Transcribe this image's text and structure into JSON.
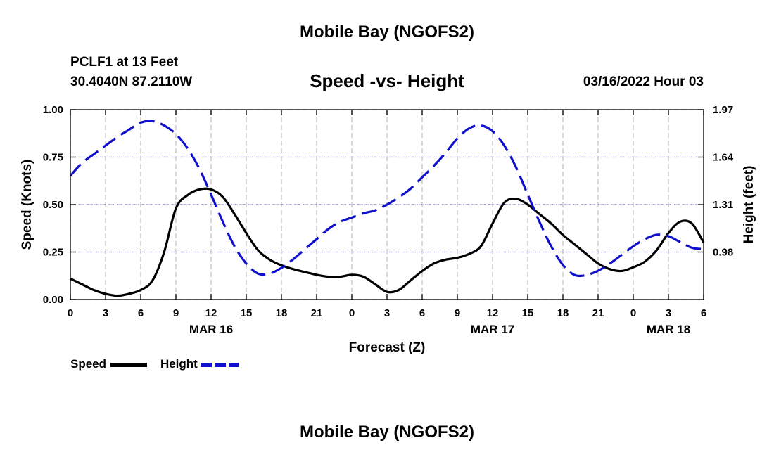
{
  "page": {
    "title_top": "Mobile Bay (NGOFS2)",
    "title_bottom": "Mobile Bay (NGOFS2)",
    "station": "PCLF1 at 13 Feet",
    "coords": "30.4040N  87.2110W",
    "subtitle": "Speed -vs- Height",
    "datetime": "03/16/2022 Hour 03"
  },
  "legend": {
    "speed_label": "Speed",
    "height_label": "Height"
  },
  "colors": {
    "speed": "#000000",
    "height": "#1010cc",
    "grid": "#bdbdbd"
  },
  "chart_data": {
    "type": "line",
    "title": "Speed -vs- Height",
    "xlabel": "Forecast (Z)",
    "ylabel": "Speed (Knots)",
    "y2label": "Height (feet)",
    "xlim": [
      0,
      54
    ],
    "ylim": [
      0,
      1
    ],
    "y2lim": [
      0.65,
      1.97
    ],
    "x_ticks": [
      0,
      3,
      6,
      9,
      12,
      15,
      18,
      21,
      24,
      27,
      30,
      33,
      36,
      39,
      42,
      45,
      48,
      51,
      54
    ],
    "x_tick_labels": [
      "0",
      "3",
      "6",
      "9",
      "12",
      "15",
      "18",
      "21",
      "0",
      "3",
      "6",
      "9",
      "12",
      "15",
      "18",
      "21",
      "0",
      "3",
      "6"
    ],
    "date_labels": [
      {
        "x": 12,
        "label": "MAR 16"
      },
      {
        "x": 36,
        "label": "MAR 17"
      },
      {
        "x": 51,
        "label": "MAR 18"
      }
    ],
    "y_ticks": [
      0,
      0.25,
      0.5,
      0.75,
      1.0
    ],
    "y_tick_labels": [
      "0.00",
      "0.25",
      "0.50",
      "0.75",
      "1.00"
    ],
    "y2_ticks": [
      0.98,
      1.31,
      1.64,
      1.97
    ],
    "y2_tick_labels": [
      "0.98",
      "1.31",
      "1.64",
      "1.97"
    ],
    "grid": true,
    "legend_position": "bottom-left",
    "series": [
      {
        "name": "Speed",
        "axis": "left",
        "style": "solid",
        "x": [
          0,
          1,
          2,
          3,
          4,
          5,
          6,
          7,
          8,
          9,
          10,
          11,
          12,
          13,
          14,
          15,
          16,
          17,
          18,
          19,
          20,
          21,
          22,
          23,
          24,
          25,
          26,
          27,
          28,
          29,
          30,
          31,
          32,
          33,
          34,
          35,
          36,
          37,
          38,
          39,
          40,
          41,
          42,
          43,
          44,
          45,
          46,
          47,
          48,
          49,
          50,
          51,
          52,
          53,
          54
        ],
        "values": [
          0.11,
          0.08,
          0.05,
          0.03,
          0.02,
          0.03,
          0.05,
          0.1,
          0.25,
          0.48,
          0.55,
          0.58,
          0.58,
          0.54,
          0.45,
          0.35,
          0.26,
          0.21,
          0.18,
          0.16,
          0.145,
          0.13,
          0.12,
          0.12,
          0.13,
          0.12,
          0.08,
          0.04,
          0.05,
          0.1,
          0.15,
          0.19,
          0.21,
          0.22,
          0.24,
          0.28,
          0.4,
          0.51,
          0.53,
          0.5,
          0.45,
          0.4,
          0.34,
          0.29,
          0.24,
          0.19,
          0.16,
          0.15,
          0.17,
          0.2,
          0.26,
          0.35,
          0.41,
          0.4,
          0.3
        ]
      },
      {
        "name": "Height",
        "axis": "right",
        "style": "dashed",
        "x": [
          0,
          1,
          2,
          3,
          4,
          5,
          6,
          7,
          8,
          9,
          10,
          11,
          12,
          13,
          14,
          15,
          16,
          17,
          18,
          19,
          20,
          21,
          22,
          23,
          24,
          25,
          26,
          27,
          28,
          29,
          30,
          31,
          32,
          33,
          34,
          35,
          36,
          37,
          38,
          39,
          40,
          41,
          42,
          43,
          44,
          45,
          46,
          47,
          48,
          49,
          50,
          51,
          52,
          53,
          54
        ],
        "values": [
          1.51,
          1.6,
          1.66,
          1.72,
          1.78,
          1.83,
          1.88,
          1.89,
          1.86,
          1.8,
          1.7,
          1.56,
          1.38,
          1.19,
          1.02,
          0.9,
          0.83,
          0.83,
          0.87,
          0.93,
          1.0,
          1.07,
          1.14,
          1.19,
          1.22,
          1.25,
          1.27,
          1.31,
          1.36,
          1.42,
          1.5,
          1.58,
          1.67,
          1.77,
          1.84,
          1.86,
          1.82,
          1.72,
          1.57,
          1.38,
          1.19,
          1.02,
          0.89,
          0.82,
          0.82,
          0.85,
          0.9,
          0.96,
          1.02,
          1.07,
          1.1,
          1.09,
          1.05,
          1.01,
          1.0
        ]
      }
    ]
  }
}
